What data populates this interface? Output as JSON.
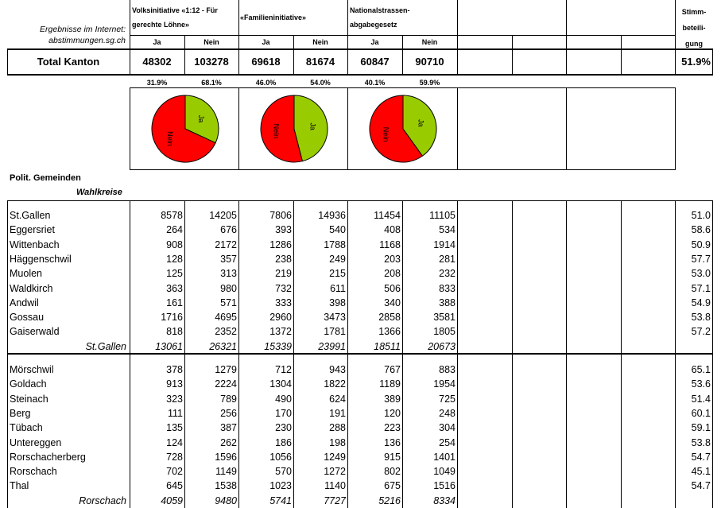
{
  "internet": [
    "Ergebnisse im Internet:",
    "abstimmungen.sg.ch"
  ],
  "votes": [
    {
      "title": [
        "Volksinitiative «1:12 - Für",
        "gerechte Löhne»"
      ],
      "ja_label": "Ja",
      "nein_label": "Nein",
      "total_ja": "48302",
      "total_nein": "103278",
      "pct_ja": "31.9%",
      "pct_nein": "68.1%"
    },
    {
      "title": [
        "«Familieninitiative»"
      ],
      "ja_label": "Ja",
      "nein_label": "Nein",
      "total_ja": "69618",
      "total_nein": "81674",
      "pct_ja": "46.0%",
      "pct_nein": "54.0%"
    },
    {
      "title": [
        "Nationalstrassen-",
        "abgabegesetz"
      ],
      "ja_label": "Ja",
      "nein_label": "Nein",
      "total_ja": "60847",
      "total_nein": "90710",
      "pct_ja": "40.1%",
      "pct_nein": "59.9%"
    }
  ],
  "pie_labels": {
    "ja": "Ja",
    "nein": "Nein"
  },
  "pie_colors": {
    "ja": "#99cc00",
    "nein": "#ff0000"
  },
  "turnout_header": [
    "Stimm-",
    "beteili-",
    "gung"
  ],
  "total": {
    "label": "Total Kanton",
    "turnout": "51.9%"
  },
  "polit_label": "Polit. Gemeinden",
  "wahlkreise_label": "Wahlkreise",
  "groups": [
    {
      "rows": [
        {
          "name": "St.Gallen",
          "values": [
            "8578",
            "14205",
            "7806",
            "14936",
            "11454",
            "11105"
          ],
          "turnout": "51.0"
        },
        {
          "name": "Eggersriet",
          "values": [
            "264",
            "676",
            "393",
            "540",
            "408",
            "534"
          ],
          "turnout": "58.6"
        },
        {
          "name": "Wittenbach",
          "values": [
            "908",
            "2172",
            "1286",
            "1788",
            "1168",
            "1914"
          ],
          "turnout": "50.9"
        },
        {
          "name": "Häggenschwil",
          "values": [
            "128",
            "357",
            "238",
            "249",
            "203",
            "281"
          ],
          "turnout": "57.7"
        },
        {
          "name": "Muolen",
          "values": [
            "125",
            "313",
            "219",
            "215",
            "208",
            "232"
          ],
          "turnout": "53.0"
        },
        {
          "name": "Waldkirch",
          "values": [
            "363",
            "980",
            "732",
            "611",
            "506",
            "833"
          ],
          "turnout": "57.1"
        },
        {
          "name": "Andwil",
          "values": [
            "161",
            "571",
            "333",
            "398",
            "340",
            "388"
          ],
          "turnout": "54.9"
        },
        {
          "name": "Gossau",
          "values": [
            "1716",
            "4695",
            "2960",
            "3473",
            "2858",
            "3581"
          ],
          "turnout": "53.8"
        },
        {
          "name": "Gaiserwald",
          "values": [
            "818",
            "2352",
            "1372",
            "1781",
            "1366",
            "1805"
          ],
          "turnout": "57.2"
        }
      ],
      "subtotal": {
        "name": "St.Gallen",
        "values": [
          "13061",
          "26321",
          "15339",
          "23991",
          "18511",
          "20673"
        ]
      }
    },
    {
      "rows": [
        {
          "name": "Mörschwil",
          "values": [
            "378",
            "1279",
            "712",
            "943",
            "767",
            "883"
          ],
          "turnout": "65.1"
        },
        {
          "name": "Goldach",
          "values": [
            "913",
            "2224",
            "1304",
            "1822",
            "1189",
            "1954"
          ],
          "turnout": "53.6"
        },
        {
          "name": "Steinach",
          "values": [
            "323",
            "789",
            "490",
            "624",
            "389",
            "725"
          ],
          "turnout": "51.4"
        },
        {
          "name": "Berg",
          "values": [
            "111",
            "256",
            "170",
            "191",
            "120",
            "248"
          ],
          "turnout": "60.1"
        },
        {
          "name": "Tübach",
          "values": [
            "135",
            "387",
            "230",
            "288",
            "223",
            "304"
          ],
          "turnout": "59.1"
        },
        {
          "name": "Untereggen",
          "values": [
            "124",
            "262",
            "186",
            "198",
            "136",
            "254"
          ],
          "turnout": "53.8"
        },
        {
          "name": "Rorschacherberg",
          "values": [
            "728",
            "1596",
            "1056",
            "1249",
            "915",
            "1401"
          ],
          "turnout": "54.7"
        },
        {
          "name": "Rorschach",
          "values": [
            "702",
            "1149",
            "570",
            "1272",
            "802",
            "1049"
          ],
          "turnout": "45.1"
        },
        {
          "name": "Thal",
          "values": [
            "645",
            "1538",
            "1023",
            "1140",
            "675",
            "1516"
          ],
          "turnout": "54.7"
        }
      ],
      "subtotal": {
        "name": "Rorschach",
        "values": [
          "4059",
          "9480",
          "5741",
          "7727",
          "5216",
          "8334"
        ]
      }
    }
  ]
}
